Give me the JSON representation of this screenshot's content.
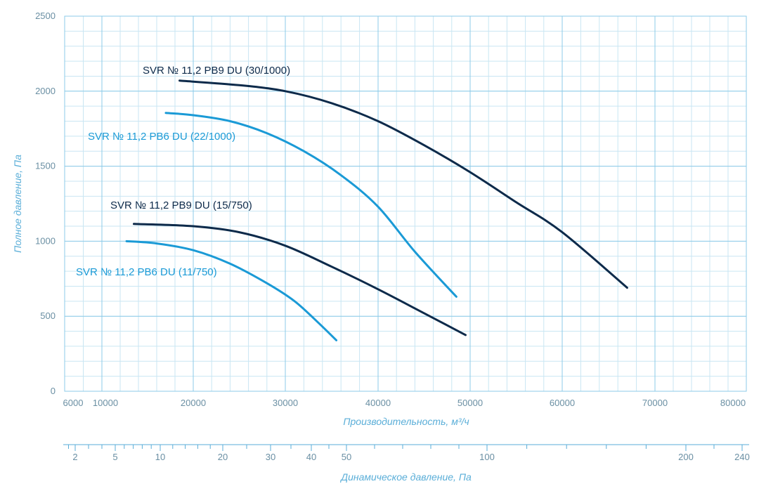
{
  "chart_data": {
    "type": "line",
    "title": "",
    "xlabel": "Производительность, м³/ч",
    "ylabel": "Полное давление, Па",
    "secondary_xlabel": "Динамическое давление, Па",
    "xlim": [
      6000,
      80000
    ],
    "ylim": [
      0,
      2500
    ],
    "grid": true,
    "x_ticks": [
      "6000",
      "10000",
      "20000",
      "30000",
      "40000",
      "50000",
      "60000",
      "70000",
      "80000"
    ],
    "x_tick_values": [
      6000,
      10000,
      20000,
      30000,
      40000,
      50000,
      60000,
      70000,
      80000
    ],
    "y_ticks": [
      "0",
      "500",
      "1000",
      "1500",
      "2000",
      "2500"
    ],
    "y_tick_values": [
      0,
      500,
      1000,
      1500,
      2000,
      2500
    ],
    "secondary_ticks": [
      "2",
      "5",
      "10",
      "20",
      "30",
      "40",
      "50",
      "100",
      "200",
      "240"
    ],
    "secondary_tick_values": [
      2,
      5,
      10,
      20,
      30,
      40,
      50,
      100,
      200,
      240
    ],
    "series": [
      {
        "name": "SVR № 11,2 PB9 DU (30/1000)",
        "color": "#0d2a4a",
        "x": [
          18500,
          25000,
          30000,
          35000,
          40000,
          45000,
          50000,
          55000,
          60000,
          67000
        ],
        "y": [
          2070,
          2040,
          2000,
          1920,
          1800,
          1640,
          1460,
          1260,
          1060,
          690
        ]
      },
      {
        "name": "SVR № 11,2 PB6 DU (22/1000)",
        "color": "#1a9ad6",
        "x": [
          17000,
          20000,
          24000,
          28000,
          32000,
          36000,
          40000,
          44000,
          48500
        ],
        "y": [
          1855,
          1840,
          1800,
          1720,
          1600,
          1440,
          1230,
          930,
          630
        ]
      },
      {
        "name": "SVR № 11,2 PB9 DU (15/750)",
        "color": "#0d2a4a",
        "x": [
          13500,
          20000,
          25000,
          30000,
          35000,
          40000,
          45000,
          49500
        ],
        "y": [
          1115,
          1100,
          1060,
          970,
          830,
          680,
          520,
          375
        ]
      },
      {
        "name": "SVR № 11,2 PB6 DU (11/750)",
        "color": "#1a9ad6",
        "x": [
          12700,
          16000,
          20000,
          24000,
          28000,
          31000,
          33500,
          35500
        ],
        "y": [
          1000,
          985,
          940,
          850,
          720,
          600,
          460,
          340
        ]
      }
    ]
  }
}
